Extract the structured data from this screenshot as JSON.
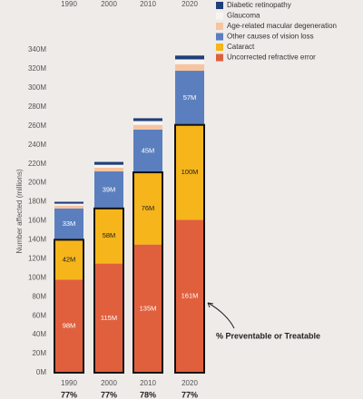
{
  "chart_data": {
    "type": "stacked_bar",
    "y_label": "Number affected (millions)",
    "categories": [
      "1990",
      "2000",
      "2010",
      "2020"
    ],
    "series": [
      {
        "name": "Uncorrected refractive error",
        "color": "#e0603e",
        "values": [
          98,
          115,
          135,
          161
        ],
        "value_labels": [
          "98M",
          "115M",
          "135M",
          "161M"
        ]
      },
      {
        "name": "Cataract",
        "color": "#f5b51b",
        "values": [
          42,
          58,
          76,
          100
        ],
        "value_labels": [
          "42M",
          "58M",
          "76M",
          "100M"
        ]
      },
      {
        "name": "Other causes of vision loss",
        "color": "#5b7fbe",
        "values": [
          33,
          39,
          45,
          57
        ],
        "value_labels": [
          "33M",
          "39M",
          "45M",
          "57M"
        ]
      },
      {
        "name": "Age-related macular degeneration",
        "color": "#f7c4a0",
        "values": [
          3,
          4,
          5,
          7
        ]
      },
      {
        "name": "Glaucoma",
        "color": "#f7f5f2",
        "values": [
          2,
          3,
          4,
          5
        ]
      },
      {
        "name": "Diabetic retinopathy",
        "color": "#1f3f7a",
        "values": [
          2,
          3,
          3,
          4
        ]
      }
    ],
    "ylim": [
      0,
      340
    ],
    "yticks": [
      {
        "value": 0,
        "label": "0M"
      },
      {
        "value": 20,
        "label": "20M"
      },
      {
        "value": 40,
        "label": "40M"
      },
      {
        "value": 60,
        "label": "60M"
      },
      {
        "value": 80,
        "label": "80M"
      },
      {
        "value": 100,
        "label": "100M"
      },
      {
        "value": 120,
        "label": "120M"
      },
      {
        "value": 140,
        "label": "140M"
      },
      {
        "value": 160,
        "label": "160M"
      },
      {
        "value": 180,
        "label": "180M"
      },
      {
        "value": 200,
        "label": "200M"
      },
      {
        "value": 220,
        "label": "220M"
      },
      {
        "value": 240,
        "label": "240M"
      },
      {
        "value": 260,
        "label": "260M"
      },
      {
        "value": 280,
        "label": "280M"
      },
      {
        "value": 300,
        "label": "300M"
      },
      {
        "value": 320,
        "label": "320M"
      },
      {
        "value": 340,
        "label": "340M"
      }
    ],
    "preventable_labels": [
      "77%",
      "77%",
      "78%",
      "77%"
    ],
    "annotation": "% Preventable or Treatable",
    "legend": "top-right"
  }
}
